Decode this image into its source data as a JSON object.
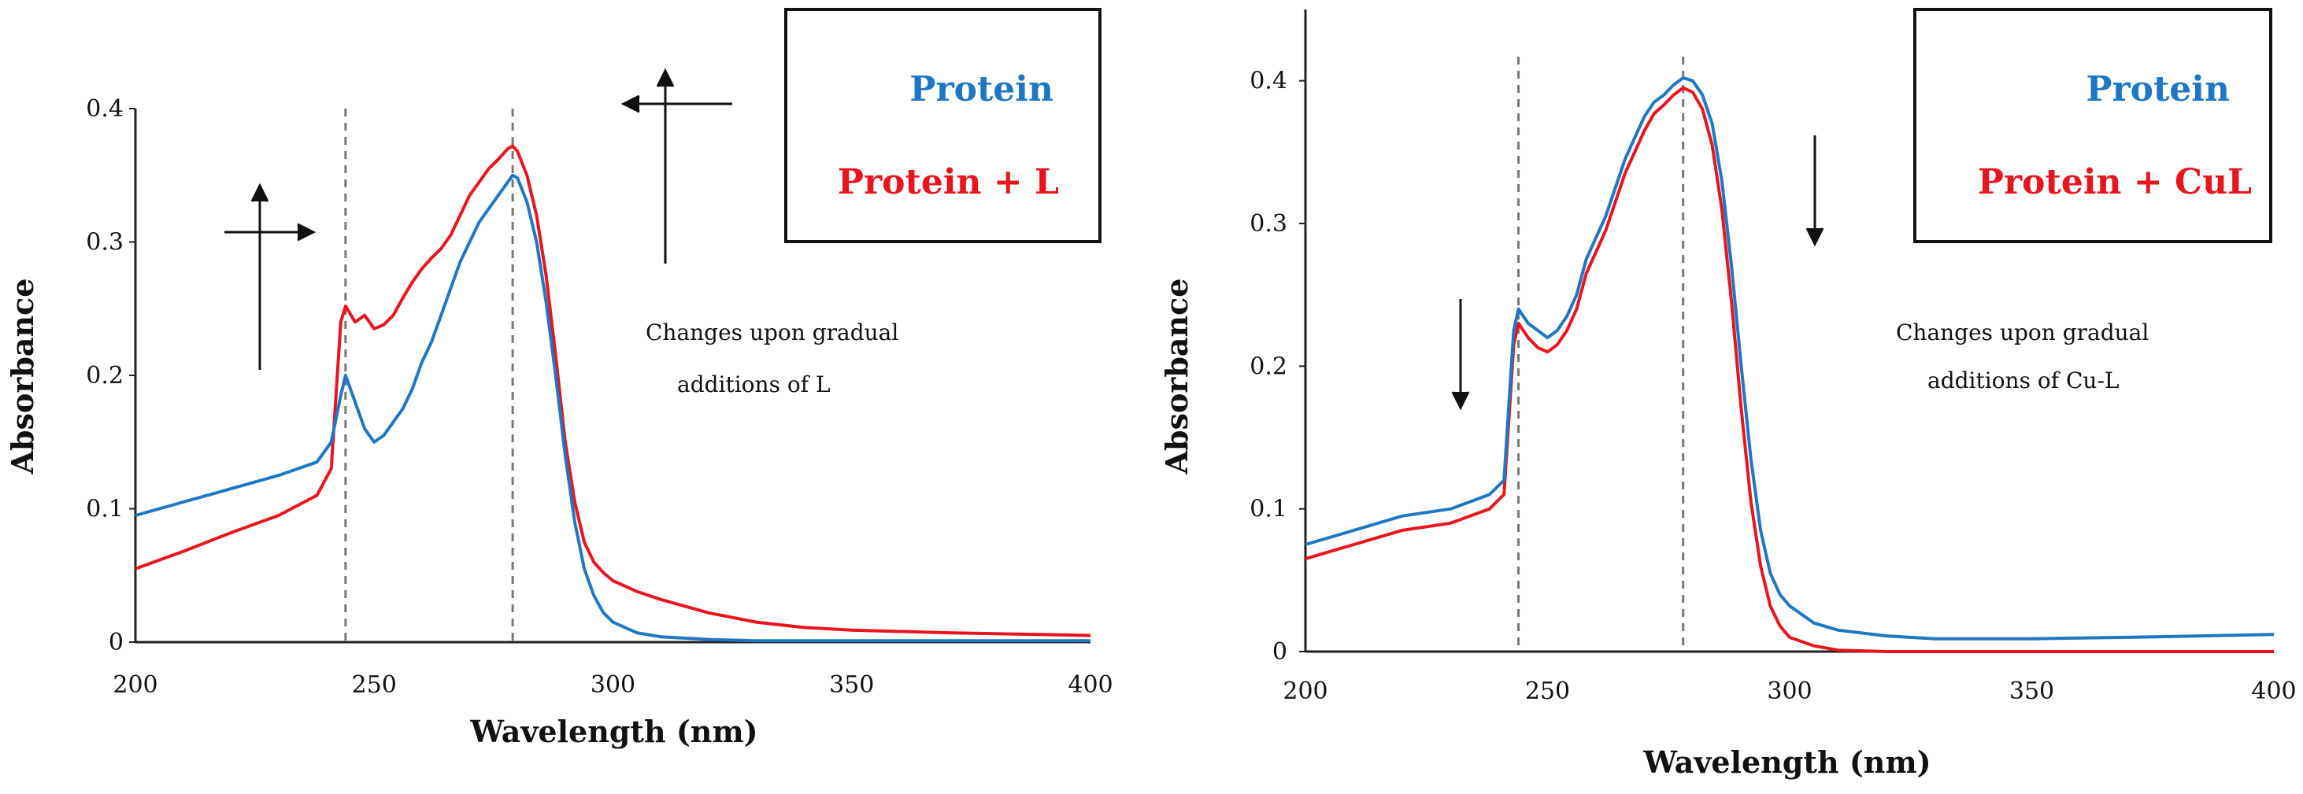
{
  "chart_data": [
    {
      "type": "line",
      "title": "",
      "xlabel": "Wavelength (nm)",
      "ylabel": "Absorbance",
      "xlim": [
        200,
        400
      ],
      "ylim": [
        0,
        0.4
      ],
      "x_ticks": [
        200,
        250,
        300,
        350,
        400
      ],
      "y_ticks": [
        0,
        0.1,
        0.2,
        0.3,
        0.4
      ],
      "y_tick_labels": [
        "0",
        "0.1",
        "0.2",
        "0.3",
        "0.4"
      ],
      "dashed_markers_x": [
        244,
        279
      ],
      "annotation": [
        "Changes upon gradual",
        "additions of L"
      ],
      "legend": [
        {
          "label": "Protein",
          "color": "#1f77c4"
        },
        {
          "label": "Protein + L",
          "color": "#e8141e"
        }
      ],
      "series": [
        {
          "name": "Protein",
          "color": "#1f77c4",
          "x": [
            200,
            210,
            220,
            230,
            238,
            241,
            243,
            244,
            246,
            248,
            250,
            252,
            254,
            256,
            258,
            260,
            262,
            264,
            266,
            268,
            270,
            272,
            274,
            276,
            278,
            279,
            280,
            282,
            284,
            286,
            288,
            290,
            292,
            294,
            296,
            298,
            300,
            305,
            310,
            320,
            330,
            340,
            350,
            370,
            400
          ],
          "y": [
            0.095,
            0.105,
            0.115,
            0.125,
            0.135,
            0.15,
            0.185,
            0.2,
            0.18,
            0.16,
            0.15,
            0.155,
            0.165,
            0.175,
            0.19,
            0.21,
            0.225,
            0.245,
            0.265,
            0.285,
            0.3,
            0.315,
            0.325,
            0.335,
            0.345,
            0.35,
            0.348,
            0.33,
            0.3,
            0.255,
            0.2,
            0.14,
            0.09,
            0.055,
            0.035,
            0.022,
            0.015,
            0.007,
            0.004,
            0.002,
            0.001,
            0.001,
            0.001,
            0.001,
            0.001
          ]
        },
        {
          "name": "Protein + L",
          "color": "#e8141e",
          "x": [
            200,
            210,
            220,
            230,
            238,
            241,
            243,
            244,
            246,
            248,
            250,
            252,
            254,
            256,
            258,
            260,
            262,
            264,
            266,
            268,
            270,
            272,
            274,
            276,
            278,
            279,
            280,
            282,
            284,
            286,
            288,
            290,
            292,
            294,
            296,
            298,
            300,
            305,
            310,
            320,
            330,
            340,
            350,
            370,
            400
          ],
          "y": [
            0.055,
            0.068,
            0.082,
            0.095,
            0.11,
            0.13,
            0.24,
            0.252,
            0.24,
            0.245,
            0.235,
            0.238,
            0.245,
            0.258,
            0.27,
            0.28,
            0.288,
            0.295,
            0.305,
            0.32,
            0.335,
            0.345,
            0.355,
            0.362,
            0.37,
            0.372,
            0.368,
            0.35,
            0.32,
            0.275,
            0.215,
            0.15,
            0.105,
            0.075,
            0.06,
            0.052,
            0.046,
            0.038,
            0.032,
            0.022,
            0.015,
            0.011,
            0.009,
            0.007,
            0.005
          ]
        }
      ]
    },
    {
      "type": "line",
      "title": "",
      "xlabel": "Wavelength (nm)",
      "ylabel": "Absorbance",
      "xlim": [
        200,
        400
      ],
      "ylim": [
        0,
        0.45
      ],
      "x_ticks": [
        200,
        250,
        300,
        350,
        400
      ],
      "y_ticks": [
        0,
        0.1,
        0.2,
        0.3,
        0.4
      ],
      "y_tick_labels": [
        "0",
        "0.1",
        "0.2",
        "0.3",
        "0.4"
      ],
      "dashed_markers_x": [
        244,
        278
      ],
      "annotation": [
        "Changes upon gradual",
        "additions of Cu-L"
      ],
      "legend": [
        {
          "label": "Protein",
          "color": "#1f77c4"
        },
        {
          "label": "Protein + CuL",
          "color": "#e8141e"
        }
      ],
      "series": [
        {
          "name": "Protein",
          "color": "#1f77c4",
          "x": [
            200,
            210,
            220,
            230,
            238,
            241,
            243,
            244,
            246,
            248,
            250,
            252,
            254,
            256,
            258,
            260,
            262,
            264,
            266,
            268,
            270,
            272,
            274,
            276,
            278,
            280,
            282,
            284,
            286,
            288,
            290,
            292,
            294,
            296,
            298,
            300,
            305,
            310,
            320,
            330,
            350,
            370,
            400
          ],
          "y": [
            0.075,
            0.085,
            0.095,
            0.1,
            0.11,
            0.12,
            0.225,
            0.24,
            0.23,
            0.225,
            0.22,
            0.225,
            0.235,
            0.25,
            0.275,
            0.29,
            0.305,
            0.325,
            0.345,
            0.36,
            0.375,
            0.385,
            0.39,
            0.397,
            0.402,
            0.4,
            0.39,
            0.37,
            0.33,
            0.27,
            0.2,
            0.135,
            0.085,
            0.055,
            0.04,
            0.032,
            0.02,
            0.015,
            0.011,
            0.009,
            0.009,
            0.01,
            0.012
          ]
        },
        {
          "name": "Protein + CuL",
          "color": "#e8141e",
          "x": [
            200,
            210,
            220,
            230,
            238,
            241,
            243,
            244,
            246,
            248,
            250,
            252,
            254,
            256,
            258,
            260,
            262,
            264,
            266,
            268,
            270,
            272,
            274,
            276,
            278,
            280,
            282,
            284,
            286,
            288,
            290,
            292,
            294,
            296,
            298,
            300,
            305,
            310,
            320,
            330,
            350,
            370,
            400
          ],
          "y": [
            0.065,
            0.075,
            0.085,
            0.09,
            0.1,
            0.11,
            0.215,
            0.23,
            0.22,
            0.213,
            0.21,
            0.215,
            0.225,
            0.24,
            0.265,
            0.28,
            0.295,
            0.315,
            0.335,
            0.35,
            0.365,
            0.377,
            0.383,
            0.39,
            0.395,
            0.392,
            0.38,
            0.355,
            0.31,
            0.245,
            0.17,
            0.105,
            0.06,
            0.032,
            0.018,
            0.01,
            0.004,
            0.001,
            0.0,
            0.0,
            0.0,
            0.0,
            0.0
          ]
        }
      ]
    }
  ]
}
